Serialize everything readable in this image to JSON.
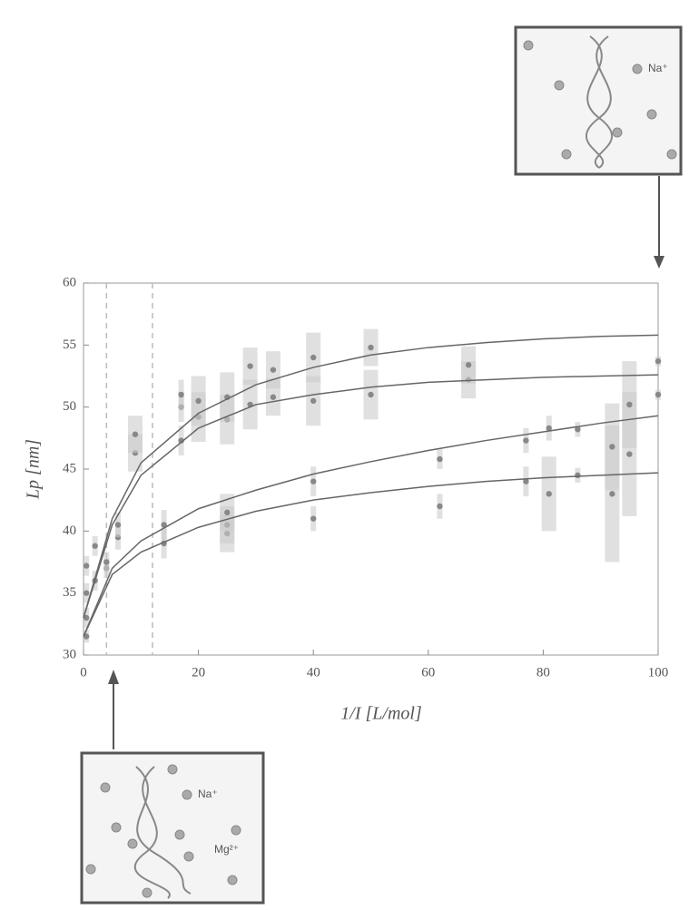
{
  "chart_data": {
    "type": "scatter",
    "xlabel": "1/I [L/mol]",
    "ylabel": "Lp [nm]",
    "xlim": [
      0,
      100
    ],
    "ylim": [
      30,
      60
    ],
    "xticks": [
      0,
      20,
      40,
      60,
      80,
      100
    ],
    "yticks": [
      30,
      35,
      40,
      45,
      50,
      55,
      60
    ],
    "color": "#888888",
    "x": [
      0.5,
      0.5,
      0.5,
      0.5,
      2,
      2,
      4,
      4,
      6,
      6,
      9,
      9,
      14,
      14,
      17,
      17,
      17,
      20,
      20,
      25,
      25,
      25,
      25,
      25,
      29,
      29,
      33,
      33,
      40,
      40,
      40,
      40,
      50,
      50,
      62,
      62,
      67,
      67,
      77,
      77,
      81,
      81,
      86,
      86,
      92,
      92,
      95,
      95,
      100,
      100
    ],
    "values": [
      31.5,
      33,
      35,
      37.2,
      36,
      38.8,
      37,
      37.5,
      39.5,
      40.5,
      46.3,
      47.8,
      39,
      40.5,
      47.3,
      50,
      51,
      49.2,
      50.5,
      39.8,
      40.5,
      41.5,
      49,
      50.8,
      50.2,
      53.3,
      50.8,
      53,
      41,
      44,
      50.5,
      54,
      51,
      54.8,
      42,
      45.8,
      52.2,
      53.4,
      44,
      47.3,
      43,
      48.3,
      44.5,
      48.2,
      43,
      46.8,
      46.2,
      50.2,
      51,
      53.7
    ],
    "errors": [
      0.5,
      0.8,
      0.8,
      0.8,
      0.8,
      0.8,
      0.8,
      0.8,
      1,
      1,
      1.5,
      1.5,
      1.2,
      1.2,
      1.2,
      1.2,
      1.2,
      2,
      2,
      1.5,
      1.5,
      1.5,
      2,
      2,
      2,
      1.5,
      1.5,
      1.5,
      1,
      1.2,
      2,
      2,
      2,
      1.5,
      1,
      0.8,
      1.5,
      1.5,
      1.2,
      1,
      3,
      1,
      0.6,
      0.6,
      5.5,
      3.5,
      5,
      3.5,
      0.4,
      0.4
    ],
    "curves": {
      "x": [
        0,
        5,
        10,
        20,
        30,
        40,
        50,
        60,
        70,
        80,
        90,
        100
      ],
      "series": [
        {
          "values": [
            33,
            41,
            45.5,
            49.5,
            51.8,
            53.2,
            54.2,
            54.8,
            55.2,
            55.5,
            55.7,
            55.8
          ]
        },
        {
          "values": [
            33,
            40.5,
            44.5,
            48.3,
            50.2,
            51,
            51.6,
            52,
            52.2,
            52.4,
            52.5,
            52.6
          ]
        },
        {
          "values": [
            31.5,
            37,
            39.2,
            41.8,
            43.3,
            44.6,
            45.6,
            46.5,
            47.3,
            48,
            48.7,
            49.3
          ]
        },
        {
          "values": [
            31.5,
            36.5,
            38.3,
            40.3,
            41.6,
            42.5,
            43.1,
            43.6,
            44,
            44.3,
            44.5,
            44.7
          ]
        }
      ]
    },
    "vlines": [
      4,
      12
    ],
    "insets": [
      {
        "labels": [
          "Na⁺"
        ]
      },
      {
        "labels": [
          "Na⁺",
          "Mg²⁺"
        ]
      }
    ]
  }
}
